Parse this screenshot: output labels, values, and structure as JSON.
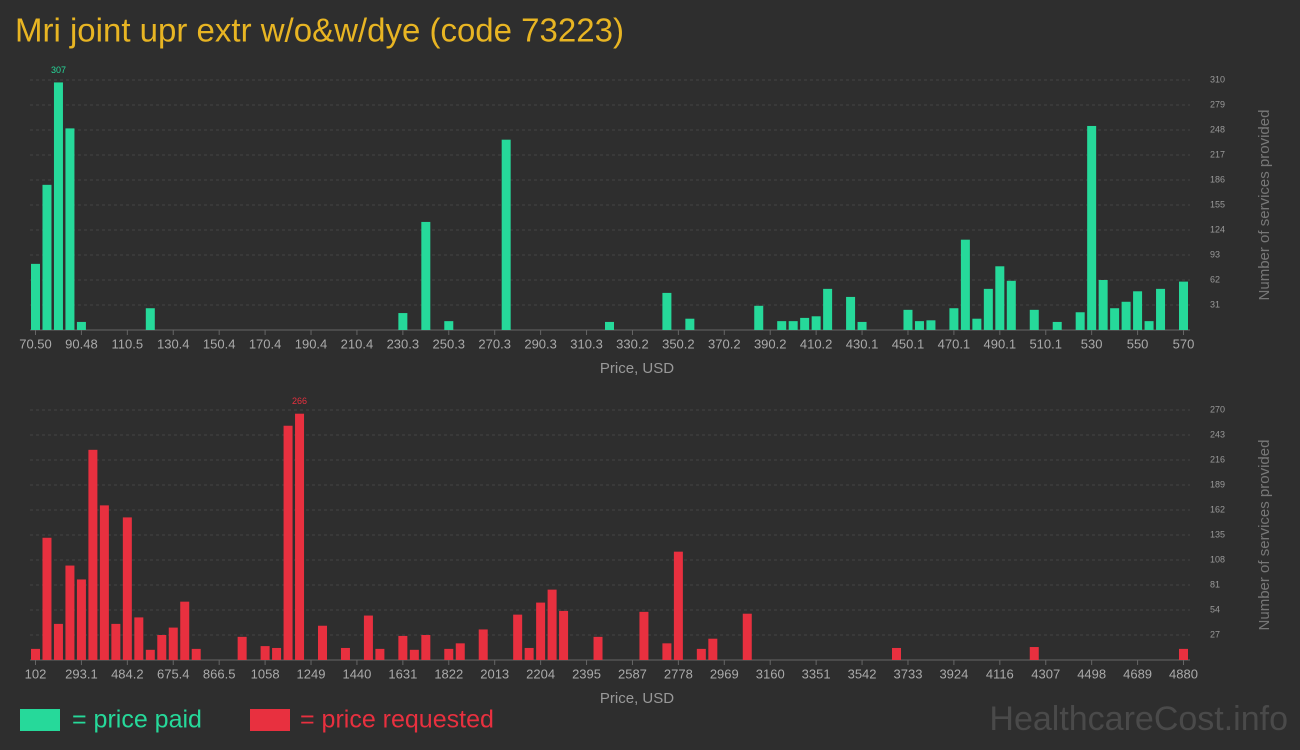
{
  "chart_data": [
    {
      "type": "bar",
      "title": "Mri joint upr extr w/o&w/dye (code 73223)",
      "x_label": "Price, USD",
      "y_label": "Number of services provided",
      "categories": [
        "70.50",
        null,
        null,
        null,
        "90.48",
        null,
        null,
        null,
        "110.5",
        null,
        null,
        null,
        "130.4",
        null,
        null,
        null,
        "150.4",
        null,
        null,
        null,
        "170.4",
        null,
        null,
        null,
        "190.4",
        null,
        null,
        null,
        "210.4",
        null,
        null,
        null,
        "230.3",
        null,
        null,
        null,
        "250.3",
        null,
        null,
        null,
        "270.3",
        null,
        null,
        null,
        "290.3",
        null,
        null,
        null,
        "310.3",
        null,
        null,
        null,
        "330.2",
        null,
        null,
        null,
        "350.2",
        null,
        null,
        null,
        "370.2",
        null,
        null,
        null,
        "390.2",
        null,
        null,
        null,
        "410.2",
        null,
        null,
        null,
        "430.1",
        null,
        null,
        null,
        "450.1",
        null,
        null,
        null,
        "470.1",
        null,
        null,
        null,
        "490.1",
        null,
        null,
        null,
        "510.1",
        null,
        null,
        null,
        "530",
        null,
        null,
        null,
        "550",
        null,
        null,
        null,
        "570"
      ],
      "series": [
        {
          "name": "= price paid",
          "color": "#26d99a",
          "values": [
            82,
            180,
            307,
            250,
            10,
            0,
            0,
            0,
            0,
            0,
            27,
            0,
            0,
            0,
            0,
            0,
            0,
            0,
            0,
            0,
            0,
            0,
            0,
            0,
            0,
            0,
            0,
            0,
            0,
            0,
            0,
            0,
            21,
            0,
            134,
            0,
            11,
            0,
            0,
            0,
            0,
            236,
            0,
            0,
            0,
            0,
            0,
            0,
            0,
            0,
            10,
            0,
            0,
            0,
            0,
            46,
            0,
            14,
            0,
            0,
            0,
            0,
            0,
            30,
            0,
            11,
            11,
            15,
            17,
            51,
            0,
            41,
            10,
            0,
            0,
            0,
            25,
            11,
            12,
            0,
            27,
            112,
            14,
            51,
            79,
            61,
            0,
            25,
            0,
            10,
            0,
            22,
            253,
            62,
            27,
            35,
            48,
            11,
            51,
            0,
            60
          ]
        }
      ],
      "ylim": [
        0,
        310
      ],
      "yticks": [
        31,
        62,
        93,
        124,
        155,
        186,
        217,
        248,
        279,
        310
      ],
      "grid": true
    },
    {
      "type": "bar",
      "x_label": "Price, USD",
      "y_label": "Number of services provided",
      "categories": [
        "102",
        null,
        null,
        null,
        "293.1",
        null,
        null,
        null,
        "484.2",
        null,
        null,
        null,
        "675.4",
        null,
        null,
        null,
        "866.5",
        null,
        null,
        null,
        "1058",
        null,
        null,
        null,
        "1249",
        null,
        null,
        null,
        "1440",
        null,
        null,
        null,
        "1631",
        null,
        null,
        null,
        "1822",
        null,
        null,
        null,
        "2013",
        null,
        null,
        null,
        "2204",
        null,
        null,
        null,
        "2395",
        null,
        null,
        null,
        "2587",
        null,
        null,
        null,
        "2778",
        null,
        null,
        null,
        "2969",
        null,
        null,
        null,
        "3160",
        null,
        null,
        null,
        "3351",
        null,
        null,
        null,
        "3542",
        null,
        null,
        null,
        "3733",
        null,
        null,
        null,
        "3924",
        null,
        null,
        null,
        "4116",
        null,
        null,
        null,
        "4307",
        null,
        null,
        null,
        "4498",
        null,
        null,
        null,
        "4689",
        null,
        null,
        null,
        "4880"
      ],
      "series": [
        {
          "name": "= price requested",
          "color": "#e8303f",
          "values": [
            12,
            132,
            39,
            102,
            87,
            227,
            167,
            39,
            154,
            46,
            11,
            27,
            35,
            63,
            12,
            0,
            0,
            0,
            25,
            0,
            15,
            13,
            253,
            266,
            0,
            37,
            0,
            13,
            0,
            48,
            12,
            0,
            26,
            11,
            27,
            0,
            12,
            18,
            0,
            33,
            0,
            0,
            49,
            13,
            62,
            76,
            53,
            0,
            0,
            25,
            0,
            0,
            0,
            52,
            0,
            18,
            117,
            0,
            12,
            23,
            0,
            0,
            50,
            0,
            0,
            0,
            0,
            0,
            0,
            0,
            0,
            0,
            0,
            0,
            0,
            13,
            0,
            0,
            0,
            0,
            0,
            0,
            0,
            0,
            0,
            0,
            0,
            14,
            0,
            0,
            0,
            0,
            0,
            0,
            0,
            0,
            0,
            0,
            0,
            0,
            12
          ]
        }
      ],
      "ylim": [
        0,
        270
      ],
      "yticks": [
        27,
        54,
        81,
        108,
        135,
        162,
        189,
        216,
        243,
        270
      ],
      "grid": true
    }
  ],
  "watermark": "HealthcareCost.info"
}
